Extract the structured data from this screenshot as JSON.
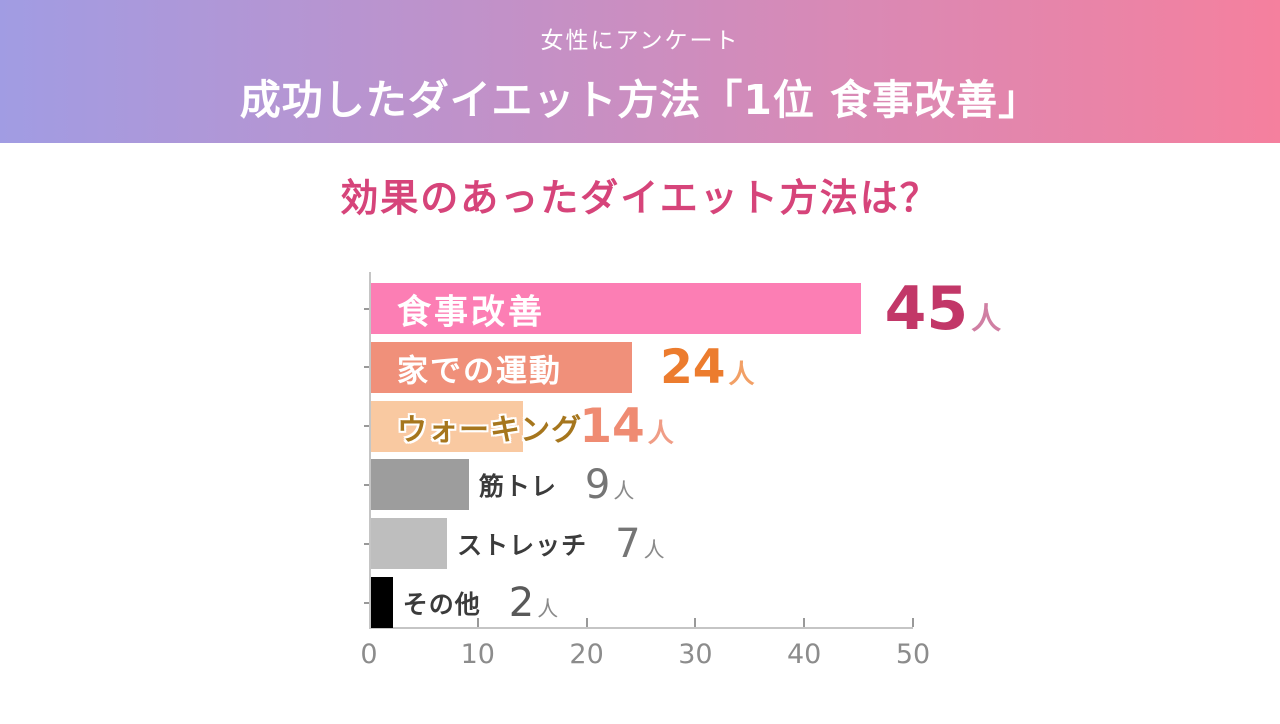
{
  "header": {
    "subtitle": "女性にアンケート",
    "title": "成功したダイエット方法「1位 食事改善」",
    "gradient_left": "#a19ce3",
    "gradient_right": "#f5809e",
    "text_color": "#ffffff"
  },
  "chart_data": {
    "type": "bar",
    "orientation": "horizontal",
    "title": "効果のあったダイエット方法は？",
    "title_color": "#d6447a",
    "categories": [
      "食事改善",
      "家での運動",
      "ウォーキング",
      "筋トレ",
      "ストレッチ",
      "その他"
    ],
    "values": [
      45,
      24,
      14,
      9,
      7,
      2
    ],
    "unit": "人",
    "xlabel": "",
    "ylabel": "",
    "xlim": [
      0,
      50
    ],
    "x_ticks": [
      0,
      10,
      20,
      30,
      40,
      50
    ],
    "grid": false,
    "legend": false,
    "bar_colors": [
      "#fc7eb4",
      "#f0907a",
      "#f9c9a1",
      "#9d9d9d",
      "#bebebe",
      "#000000"
    ],
    "label_colors": [
      "#ffffff",
      "#ffffff",
      "#a6761d",
      "#3b3b3b",
      "#3b3b3b",
      "#3b3b3b"
    ],
    "label_placement": [
      "inside",
      "inside",
      "inside",
      "outside",
      "outside",
      "outside"
    ],
    "label_outline": [
      false,
      false,
      true,
      false,
      false,
      false
    ],
    "value_colors": [
      "#c23768",
      "#ec7c2e",
      "#ef8b72",
      "#757575",
      "#757575",
      "#595959"
    ],
    "unit_colors": [
      "#d07fa3",
      "#f2a066",
      "#f09d86",
      "#8a8a8a",
      "#8a8a8a",
      "#8a8a8a"
    ],
    "axis_color": "#c5c5c5",
    "tick_color": "#999999",
    "tick_label_color": "#8c8c8c"
  }
}
